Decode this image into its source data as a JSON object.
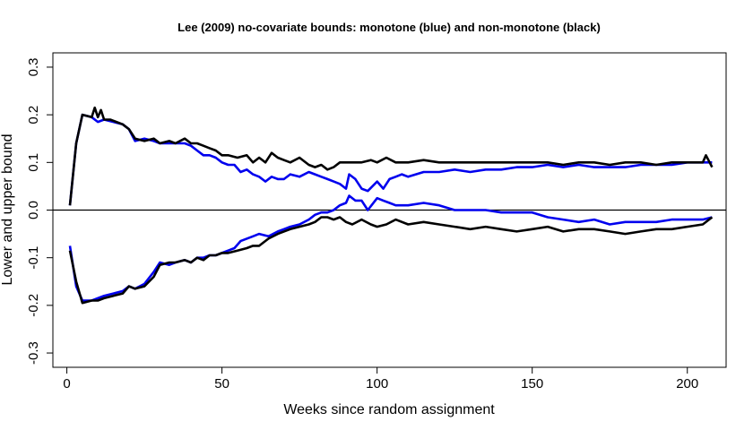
{
  "chart_data": {
    "type": "line",
    "title": "Lee (2009) no-covariate bounds: monotone (blue) and non-monotone (black)",
    "xlabel": "Weeks since random assignment",
    "ylabel": "Lower and upper bound",
    "xlim": [
      -4.5,
      212.5
    ],
    "ylim": [
      -0.33,
      0.33
    ],
    "xticks": [
      0,
      50,
      100,
      150,
      200
    ],
    "yticks": [
      -0.3,
      -0.2,
      -0.1,
      0.0,
      0.1,
      0.2,
      0.3
    ],
    "xtick_labels": [
      "0",
      "50",
      "100",
      "150",
      "200"
    ],
    "ytick_labels": [
      "-0.3",
      "-0.2",
      "-0.1",
      "0.0",
      "0.1",
      "0.2",
      "0.3"
    ],
    "hline_y": 0,
    "grid": false,
    "colors": {
      "monotone": "#0000ee",
      "non_monotone": "#000000"
    },
    "series": [
      {
        "key": "monotone-upper",
        "color": "#0000ee",
        "x": [
          1,
          3,
          5,
          8,
          10,
          12,
          15,
          18,
          20,
          22,
          25,
          28,
          30,
          33,
          35,
          38,
          40,
          42,
          44,
          46,
          48,
          50,
          52,
          54,
          56,
          58,
          60,
          62,
          64,
          66,
          68,
          70,
          72,
          75,
          78,
          80,
          82,
          84,
          86,
          88,
          90,
          91,
          93,
          95,
          97,
          100,
          102,
          104,
          106,
          108,
          110,
          115,
          120,
          125,
          130,
          135,
          140,
          145,
          150,
          155,
          160,
          165,
          170,
          175,
          180,
          185,
          190,
          195,
          200,
          205,
          208
        ],
        "y": [
          0.01,
          0.14,
          0.2,
          0.195,
          0.185,
          0.19,
          0.185,
          0.18,
          0.17,
          0.145,
          0.15,
          0.145,
          0.14,
          0.14,
          0.14,
          0.14,
          0.135,
          0.125,
          0.115,
          0.115,
          0.11,
          0.1,
          0.095,
          0.095,
          0.08,
          0.085,
          0.075,
          0.07,
          0.06,
          0.07,
          0.065,
          0.065,
          0.075,
          0.07,
          0.08,
          0.075,
          0.07,
          0.065,
          0.06,
          0.055,
          0.045,
          0.075,
          0.065,
          0.045,
          0.04,
          0.06,
          0.045,
          0.065,
          0.07,
          0.075,
          0.07,
          0.08,
          0.08,
          0.085,
          0.08,
          0.085,
          0.085,
          0.09,
          0.09,
          0.095,
          0.09,
          0.095,
          0.09,
          0.09,
          0.09,
          0.095,
          0.095,
          0.095,
          0.1,
          0.1,
          0.1
        ]
      },
      {
        "key": "non-monotone-upper",
        "color": "#000000",
        "x": [
          1,
          3,
          5,
          8,
          9,
          10,
          11,
          12,
          14,
          16,
          18,
          20,
          22,
          25,
          28,
          30,
          33,
          35,
          38,
          40,
          42,
          44,
          46,
          48,
          50,
          52,
          55,
          58,
          60,
          62,
          64,
          66,
          68,
          70,
          72,
          75,
          78,
          80,
          82,
          84,
          86,
          88,
          90,
          92,
          95,
          98,
          100,
          103,
          106,
          110,
          115,
          120,
          125,
          130,
          135,
          140,
          145,
          150,
          155,
          160,
          165,
          170,
          175,
          180,
          185,
          190,
          195,
          200,
          205,
          206,
          208
        ],
        "y": [
          0.01,
          0.14,
          0.2,
          0.195,
          0.215,
          0.195,
          0.21,
          0.19,
          0.19,
          0.185,
          0.18,
          0.17,
          0.15,
          0.145,
          0.15,
          0.14,
          0.145,
          0.14,
          0.15,
          0.14,
          0.14,
          0.135,
          0.13,
          0.125,
          0.115,
          0.115,
          0.11,
          0.115,
          0.1,
          0.11,
          0.1,
          0.12,
          0.11,
          0.105,
          0.1,
          0.11,
          0.095,
          0.09,
          0.095,
          0.085,
          0.09,
          0.1,
          0.1,
          0.1,
          0.1,
          0.105,
          0.1,
          0.11,
          0.1,
          0.1,
          0.105,
          0.1,
          0.1,
          0.1,
          0.1,
          0.1,
          0.1,
          0.1,
          0.1,
          0.095,
          0.1,
          0.1,
          0.095,
          0.1,
          0.1,
          0.095,
          0.1,
          0.1,
          0.1,
          0.115,
          0.09
        ]
      },
      {
        "key": "monotone-lower",
        "color": "#0000ee",
        "x": [
          1,
          3,
          5,
          8,
          10,
          12,
          15,
          18,
          20,
          22,
          25,
          28,
          30,
          33,
          35,
          38,
          40,
          42,
          44,
          46,
          48,
          50,
          52,
          54,
          56,
          58,
          60,
          62,
          65,
          68,
          70,
          72,
          75,
          78,
          80,
          82,
          84,
          86,
          88,
          90,
          91,
          93,
          95,
          97,
          100,
          102,
          104,
          106,
          108,
          110,
          115,
          120,
          125,
          130,
          135,
          140,
          145,
          150,
          155,
          160,
          165,
          170,
          175,
          180,
          185,
          190,
          195,
          200,
          205,
          208
        ],
        "y": [
          -0.075,
          -0.16,
          -0.19,
          -0.19,
          -0.185,
          -0.18,
          -0.175,
          -0.17,
          -0.16,
          -0.165,
          -0.155,
          -0.13,
          -0.11,
          -0.115,
          -0.11,
          -0.105,
          -0.11,
          -0.1,
          -0.1,
          -0.095,
          -0.095,
          -0.09,
          -0.085,
          -0.08,
          -0.065,
          -0.06,
          -0.055,
          -0.05,
          -0.055,
          -0.045,
          -0.04,
          -0.035,
          -0.03,
          -0.02,
          -0.01,
          -0.005,
          -0.005,
          0.0,
          0.01,
          0.015,
          0.03,
          0.02,
          0.02,
          0.0,
          0.025,
          0.02,
          0.015,
          0.01,
          0.01,
          0.01,
          0.015,
          0.01,
          0.0,
          0.0,
          0.0,
          -0.005,
          -0.005,
          -0.005,
          -0.015,
          -0.02,
          -0.025,
          -0.02,
          -0.03,
          -0.025,
          -0.025,
          -0.025,
          -0.02,
          -0.02,
          -0.02,
          -0.015
        ]
      },
      {
        "key": "non-monotone-lower",
        "color": "#000000",
        "x": [
          1,
          3,
          5,
          8,
          10,
          12,
          15,
          18,
          20,
          22,
          25,
          28,
          30,
          33,
          35,
          38,
          40,
          42,
          44,
          46,
          48,
          50,
          52,
          55,
          58,
          60,
          62,
          65,
          68,
          70,
          72,
          75,
          78,
          80,
          82,
          84,
          86,
          88,
          90,
          92,
          95,
          98,
          100,
          103,
          106,
          110,
          115,
          120,
          125,
          130,
          135,
          140,
          145,
          150,
          155,
          160,
          165,
          170,
          175,
          180,
          185,
          190,
          195,
          200,
          205,
          208
        ],
        "y": [
          -0.085,
          -0.15,
          -0.195,
          -0.19,
          -0.19,
          -0.185,
          -0.18,
          -0.175,
          -0.16,
          -0.165,
          -0.16,
          -0.14,
          -0.115,
          -0.11,
          -0.11,
          -0.105,
          -0.11,
          -0.1,
          -0.105,
          -0.095,
          -0.095,
          -0.09,
          -0.09,
          -0.085,
          -0.08,
          -0.075,
          -0.075,
          -0.06,
          -0.05,
          -0.045,
          -0.04,
          -0.035,
          -0.03,
          -0.025,
          -0.015,
          -0.015,
          -0.02,
          -0.015,
          -0.025,
          -0.03,
          -0.02,
          -0.03,
          -0.035,
          -0.03,
          -0.02,
          -0.03,
          -0.025,
          -0.03,
          -0.035,
          -0.04,
          -0.035,
          -0.04,
          -0.045,
          -0.04,
          -0.035,
          -0.045,
          -0.04,
          -0.04,
          -0.045,
          -0.05,
          -0.045,
          -0.04,
          -0.04,
          -0.035,
          -0.03,
          -0.015
        ]
      }
    ]
  }
}
